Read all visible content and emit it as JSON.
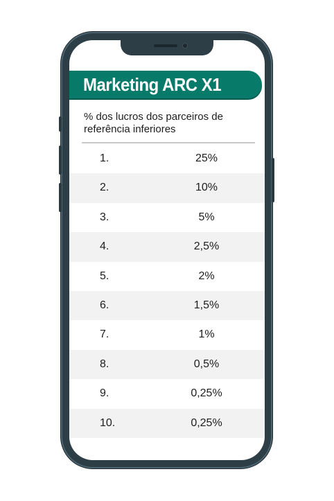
{
  "header": {
    "title": "Marketing ARC X1",
    "subtitle": "% dos lucros dos parceiros de referência inferiores"
  },
  "table": {
    "rows": [
      {
        "rank": "1.",
        "percent": "25%"
      },
      {
        "rank": "2.",
        "percent": "10%"
      },
      {
        "rank": "3.",
        "percent": "5%"
      },
      {
        "rank": "4.",
        "percent": "2,5%"
      },
      {
        "rank": "5.",
        "percent": "2%"
      },
      {
        "rank": "6.",
        "percent": "1,5%"
      },
      {
        "rank": "7.",
        "percent": "1%"
      },
      {
        "rank": "8.",
        "percent": "0,5%"
      },
      {
        "rank": "9.",
        "percent": "0,25%"
      },
      {
        "rank": "10.",
        "percent": "0,25%"
      }
    ]
  },
  "colors": {
    "banner": "#087a6a",
    "phone_frame": "#2e3e47",
    "row_shade": "#f2f2f2"
  }
}
